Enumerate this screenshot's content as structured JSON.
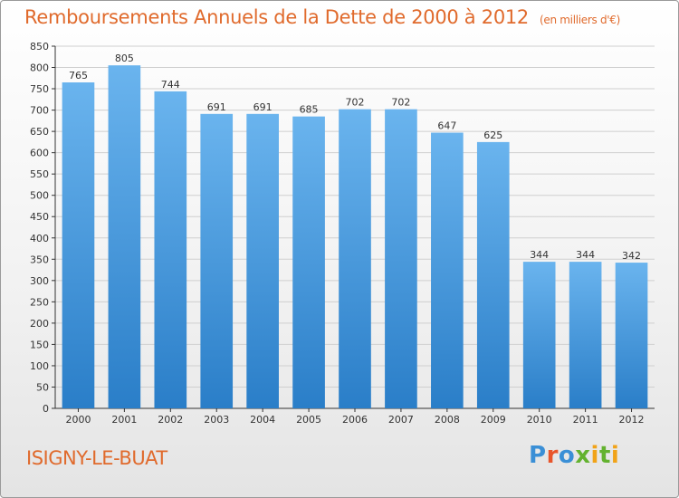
{
  "header": {
    "title": "Remboursements Annuels de la Dette de 2000 à 2012",
    "unit": "(en milliers d'€)"
  },
  "footer": {
    "commune": "ISIGNY-LE-BUAT",
    "logo_letters": [
      "P",
      "r",
      "o",
      "x",
      "i",
      "t",
      "i"
    ],
    "logo_colors": [
      "#3a8fd6",
      "#e8552b",
      "#3a8fd6",
      "#63b22f",
      "#f1a318",
      "#63b22f",
      "#f1a318"
    ]
  },
  "colors": {
    "bar_top": "#6ab4ee",
    "bar_bottom": "#2a7ec8",
    "axis": "#333333",
    "grid": "#cfcfcf",
    "text": "#333333"
  },
  "chart_data": {
    "type": "bar",
    "categories": [
      "2000",
      "2001",
      "2002",
      "2003",
      "2004",
      "2005",
      "2006",
      "2007",
      "2008",
      "2009",
      "2010",
      "2011",
      "2012"
    ],
    "values": [
      765,
      805,
      744,
      691,
      691,
      685,
      702,
      702,
      647,
      625,
      344,
      344,
      342
    ],
    "ylim": [
      0,
      850
    ],
    "ytick_step": 50,
    "grid": true,
    "data_labels": true
  }
}
